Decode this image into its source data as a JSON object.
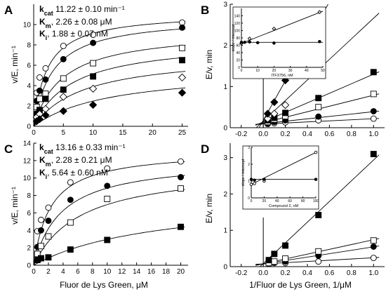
{
  "panels": {
    "A": {
      "letter": "A",
      "ylabel": "v/E, min⁻¹",
      "xlabel": "",
      "params": [
        {
          "key": "k",
          "sub": "cat",
          "value": " 11.22 ± 0.10 min⁻¹"
        },
        {
          "key": "K",
          "sub": "m",
          "value": ", 2.26 ± 0.08 μM"
        },
        {
          "key": "K",
          "sub": "i",
          "value": ", 1.88 ± 0.07 nM"
        }
      ]
    },
    "B": {
      "letter": "B",
      "ylabel": "E/v, min",
      "xlabel": ""
    },
    "C": {
      "letter": "C",
      "ylabel": "v/E, min⁻¹",
      "xlabel": "Fluor de  Lys Green, μM",
      "params": [
        {
          "key": "k",
          "sub": "cat",
          "value": " 13.16 ± 0.33 min⁻¹"
        },
        {
          "key": "K",
          "sub": "m",
          "value": ", 2.28 ± 0.21 μM"
        },
        {
          "key": "K",
          "sub": "i",
          "value": ", 5.64 ± 0.60 nM"
        }
      ]
    },
    "D": {
      "letter": "D",
      "ylabel": "E/v, min",
      "xlabel": "1/Fluor de  Lys Green, 1/μM"
    }
  },
  "insets": {
    "B": {
      "xlabel": "ITF3756, nM",
      "ylabel": "slope / intercept"
    },
    "D": {
      "xlabel": "Compound 2, nM",
      "ylabel": "slope / intercept"
    }
  },
  "chart_data": [
    {
      "id": "A",
      "type": "scatter",
      "xlim": [
        0,
        26
      ],
      "ylim": [
        0,
        12
      ],
      "xticks": [
        0,
        5,
        10,
        15,
        20,
        25
      ],
      "yticks": [
        0,
        2,
        4,
        6,
        8,
        10
      ],
      "x": [
        0.5,
        1,
        2,
        5,
        10,
        25
      ],
      "series": [
        {
          "marker": "open-circle",
          "values": [
            3.3,
            4.8,
            5.7,
            7.9,
            9.0,
            10.2
          ],
          "fit_vmax": 11.2,
          "fit_km": 2.26
        },
        {
          "marker": "filled-circle",
          "values": [
            2.5,
            3.5,
            4.6,
            6.6,
            8.2,
            9.7
          ],
          "fit_vmax": 10.8,
          "fit_km": 3.2
        },
        {
          "marker": "open-square",
          "values": [
            1.9,
            2.7,
            3.2,
            4.7,
            6.2,
            7.7
          ],
          "fit_vmax": 9.5,
          "fit_km": 4.9
        },
        {
          "marker": "filled-square",
          "values": [
            1.2,
            1.6,
            2.7,
            3.6,
            4.9,
            6.5
          ],
          "fit_vmax": 8.5,
          "fit_km": 6.5
        },
        {
          "marker": "open-diamond",
          "values": [
            0.9,
            1.2,
            1.7,
            2.9,
            3.7,
            4.8
          ],
          "fit_vmax": 7.2,
          "fit_km": 8.5
        },
        {
          "marker": "filled-diamond",
          "values": [
            0.5,
            0.7,
            1.1,
            1.5,
            2.1,
            3.3
          ],
          "fit_vmax": 5.7,
          "fit_km": 13.0
        }
      ]
    },
    {
      "id": "B",
      "type": "scatter",
      "xlim": [
        -0.3,
        1.1
      ],
      "ylim": [
        0,
        3
      ],
      "xticks": [
        -0.2,
        0.0,
        0.2,
        0.4,
        0.6,
        0.8,
        1.0
      ],
      "yticks": [
        0,
        1,
        2,
        3
      ],
      "x": [
        0.04,
        0.1,
        0.2,
        0.5,
        1.0
      ],
      "series": [
        {
          "marker": "open-circle",
          "values": [
            0.09,
            0.11,
            0.13,
            0.18,
            0.22
          ]
        },
        {
          "marker": "filled-circle",
          "values": [
            0.11,
            0.14,
            0.18,
            0.27,
            0.4
          ]
        },
        {
          "marker": "open-square",
          "values": [
            0.14,
            0.2,
            0.28,
            0.5,
            0.82
          ]
        },
        {
          "marker": "filled-square",
          "values": [
            0.18,
            0.24,
            0.36,
            0.72,
            1.35
          ]
        },
        {
          "marker": "open-diamond",
          "values": [
            0.22,
            0.34,
            0.55,
            1.45,
            null
          ]
        },
        {
          "marker": "filled-diamond",
          "values": [
            0.34,
            0.62,
            1.15,
            2.6,
            null
          ]
        }
      ],
      "fit_lines": [
        {
          "slope": 0.13,
          "intercept": 0.089
        },
        {
          "slope": 0.29,
          "intercept": 0.1
        },
        {
          "slope": 0.67,
          "intercept": 0.12
        },
        {
          "slope": 1.16,
          "intercept": 0.14
        },
        {
          "slope": 2.5,
          "intercept": 0.16
        },
        {
          "slope": 4.8,
          "intercept": 0.18
        }
      ],
      "inset": {
        "xlim": [
          0,
          50
        ],
        "ylim": [
          0,
          160
        ],
        "xticks": [
          0,
          10,
          20,
          30,
          40,
          50
        ],
        "yticks": [
          0,
          20,
          40,
          60,
          80,
          100,
          120,
          140
        ],
        "series": [
          {
            "marker": "open-diamond",
            "x": [
              0,
              5,
              20,
              48
            ],
            "y": [
              65,
              78,
              105,
              150
            ],
            "fit": [
              65,
              1.75
            ]
          },
          {
            "marker": "filled-circle",
            "x": [
              0,
              2,
              5,
              10,
              20,
              48
            ],
            "y": [
              68,
              68,
              69,
              67,
              66,
              70
            ],
            "fit": [
              68,
              0.0
            ]
          }
        ]
      }
    },
    {
      "id": "C",
      "type": "scatter",
      "xlim": [
        0,
        21
      ],
      "ylim": [
        0,
        14
      ],
      "xticks": [
        0,
        2,
        4,
        6,
        8,
        10,
        12,
        14,
        16,
        18,
        20
      ],
      "yticks": [
        0,
        2,
        4,
        6,
        8,
        10,
        12,
        14
      ],
      "x": [
        0.5,
        1,
        2,
        5,
        10,
        20
      ],
      "series": [
        {
          "marker": "open-circle",
          "values": [
            3.9,
            5.2,
            6.6,
            9.5,
            11.1,
            11.9
          ],
          "fit_vmax": 13.2,
          "fit_km": 2.28
        },
        {
          "marker": "filled-circle",
          "values": [
            2.1,
            4.0,
            5.1,
            7.5,
            9.1,
            10.1
          ],
          "fit_vmax": 12.2,
          "fit_km": 3.8
        },
        {
          "marker": "open-square",
          "values": [
            1.3,
            2.2,
            3.3,
            4.9,
            7.6,
            8.8
          ],
          "fit_vmax": 11.4,
          "fit_km": 6.4
        },
        {
          "marker": "filled-square",
          "values": [
            0.6,
            0.8,
            0.9,
            1.8,
            2.9,
            4.4
          ],
          "fit_vmax": 8.0,
          "fit_km": 17.0
        }
      ]
    },
    {
      "id": "D",
      "type": "scatter",
      "xlim": [
        -0.3,
        1.1
      ],
      "ylim": [
        0,
        3.4
      ],
      "xticks": [
        -0.2,
        0.0,
        0.2,
        0.4,
        0.6,
        0.8,
        1.0
      ],
      "yticks": [
        0,
        1,
        2,
        3
      ],
      "x": [
        0.05,
        0.1,
        0.2,
        0.5,
        1.0
      ],
      "series": [
        {
          "marker": "open-circle",
          "values": [
            0.08,
            0.1,
            0.1,
            0.14,
            0.24
          ]
        },
        {
          "marker": "filled-circle",
          "values": [
            0.08,
            0.12,
            0.14,
            0.3,
            0.55
          ]
        },
        {
          "marker": "open-square",
          "values": [
            0.1,
            0.14,
            0.22,
            0.42,
            0.72
          ]
        },
        {
          "marker": "filled-square",
          "values": [
            0.18,
            0.35,
            0.58,
            1.42,
            3.1
          ]
        }
      ],
      "fit_lines": [
        {
          "slope": 0.17,
          "intercept": 0.075
        },
        {
          "slope": 0.47,
          "intercept": 0.075
        },
        {
          "slope": 0.66,
          "intercept": 0.08
        },
        {
          "slope": 2.85,
          "intercept": 0.085
        }
      ],
      "inset": {
        "xlim": [
          0,
          100
        ],
        "ylim": [
          0,
          3
        ],
        "xticks": [
          0,
          20,
          40,
          60,
          80,
          100
        ],
        "yticks": [
          0,
          1,
          2,
          3
        ],
        "series": [
          {
            "marker": "open-circle",
            "x": [
              0,
              5,
              20,
              100
            ],
            "y": [
              0.8,
              0.85,
              1.0,
              2.7
            ],
            "fit": [
              0.8,
              0.019
            ]
          },
          {
            "marker": "filled-circle",
            "x": [
              0,
              5,
              20,
              100
            ],
            "y": [
              1.1,
              1.05,
              1.1,
              1.1
            ],
            "fit": [
              1.1,
              0.0
            ]
          }
        ]
      }
    }
  ]
}
